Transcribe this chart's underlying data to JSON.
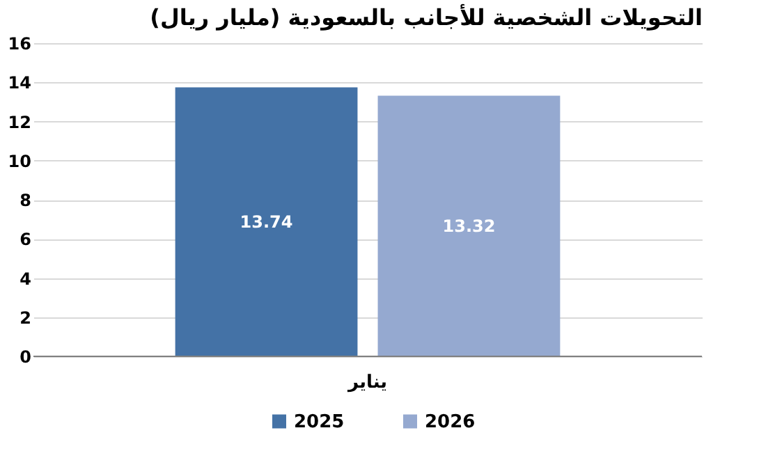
{
  "chart_data": {
    "type": "bar",
    "title": "التحويلات الشخصية للأجانب بالسعودية (مليار ريال)",
    "categories": [
      "يناير"
    ],
    "series": [
      {
        "name": "2025",
        "color": "#4472a6",
        "values": [
          13.74
        ]
      },
      {
        "name": "2026",
        "color": "#95a9d0",
        "values": [
          13.32
        ]
      }
    ],
    "ylim": [
      0,
      16
    ],
    "yticks": [
      0,
      2,
      4,
      6,
      8,
      10,
      12,
      14,
      16
    ],
    "grid": "y",
    "legend": "bottom",
    "data_labels": true
  }
}
